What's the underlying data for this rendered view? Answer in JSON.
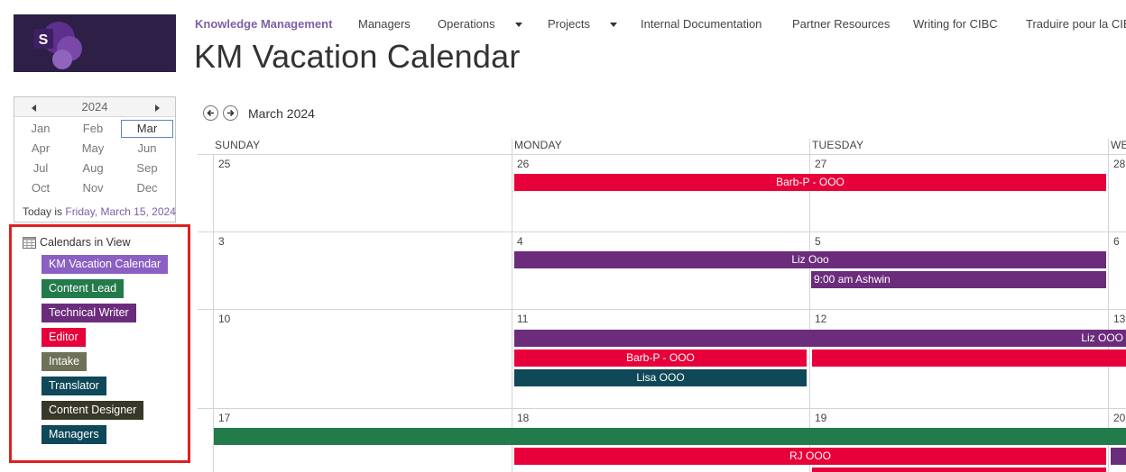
{
  "colors": {
    "km_vacation": "#8b60c2",
    "content_lead": "#237a4a",
    "technical_writer": "#6b2c7c",
    "editor": "#e8003a",
    "intake": "#6e7158",
    "translator": "#0f4858",
    "content_designer": "#383828",
    "managers": "#0f4858",
    "nav_active": "#7d5fa6",
    "highlight_border": "#e01f1f"
  },
  "site": {
    "logo_letter": "S"
  },
  "topnav": {
    "items": [
      {
        "label": "Knowledge Management",
        "active": true
      },
      {
        "label": "Managers"
      },
      {
        "label": "Operations",
        "caret": true
      },
      {
        "label": "Projects",
        "caret": true
      },
      {
        "label": "Internal Documentation"
      },
      {
        "label": "Partner Resources"
      },
      {
        "label": "Writing for CIBC"
      },
      {
        "label": "Traduire pour la CIBC"
      }
    ]
  },
  "page": {
    "title": "KM Vacation Calendar"
  },
  "mini_calendar": {
    "year": "2024",
    "months": [
      "Jan",
      "Feb",
      "Mar",
      "Apr",
      "May",
      "Jun",
      "Jul",
      "Aug",
      "Sep",
      "Oct",
      "Nov",
      "Dec"
    ],
    "selected": "Mar",
    "today_prefix": "Today is ",
    "today_date": "Friday, March 15, 2024"
  },
  "calendars_in_view": {
    "title": "Calendars in View",
    "items": [
      "KM Vacation Calendar",
      "Content Lead",
      "Technical Writer",
      "Editor",
      "Intake",
      "Translator",
      "Content Designer",
      "Managers"
    ]
  },
  "month_view": {
    "month_label": "March 2024",
    "day_headers": [
      "SUNDAY",
      "MONDAY",
      "TUESDAY",
      "WE"
    ],
    "week_days": [
      [
        "25",
        "26",
        "27",
        "28"
      ],
      [
        "3",
        "4",
        "5",
        "6"
      ],
      [
        "10",
        "11",
        "12",
        "13"
      ],
      [
        "17",
        "18",
        "19",
        "20"
      ]
    ],
    "events": [
      {
        "label": "Barb-P - OOO",
        "calendar": "Editor"
      },
      {
        "label": "Liz Ooo",
        "calendar": "Technical Writer"
      },
      {
        "label": "9:00 am Ashwin",
        "calendar": "Technical Writer"
      },
      {
        "label": "Liz OOO",
        "calendar": "Technical Writer"
      },
      {
        "label": "Barb-P - OOO",
        "calendar": "Editor"
      },
      {
        "label": "",
        "calendar": "Editor"
      },
      {
        "label": "Lisa OOO",
        "calendar": "Translator"
      },
      {
        "label": "",
        "calendar": "Content Lead"
      },
      {
        "label": "RJ OOO",
        "calendar": "Editor"
      },
      {
        "label": "",
        "calendar": "Technical Writer"
      },
      {
        "label": "",
        "calendar": "Editor"
      }
    ]
  }
}
